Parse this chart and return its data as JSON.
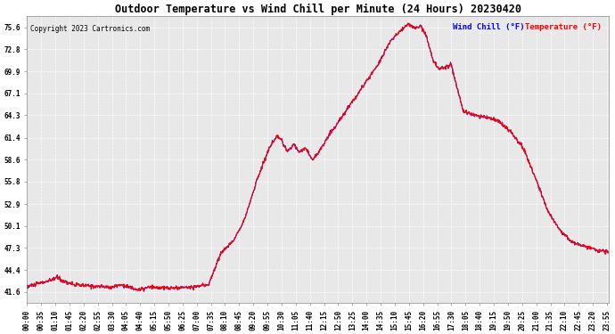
{
  "title": "Outdoor Temperature vs Wind Chill per Minute (24 Hours) 20230420",
  "copyright": "Copyright 2023 Cartronics.com",
  "legend_wind": "Wind Chill (°F)",
  "legend_temp": "Temperature (°F)",
  "wind_chill_color": "blue",
  "temp_color": "red",
  "background_color": "#ffffff",
  "plot_bg_color": "#e8e8e8",
  "grid_color": "#ffffff",
  "yticks": [
    41.6,
    44.4,
    47.3,
    50.1,
    52.9,
    55.8,
    58.6,
    61.4,
    64.3,
    67.1,
    69.9,
    72.8,
    75.6
  ],
  "ylim": [
    40.2,
    77.0
  ],
  "xtick_interval": 35,
  "line_width": 0.8,
  "title_fontsize": 8.5,
  "tick_fontsize": 5.5,
  "copyright_fontsize": 5.5,
  "legend_fontsize": 6.5
}
